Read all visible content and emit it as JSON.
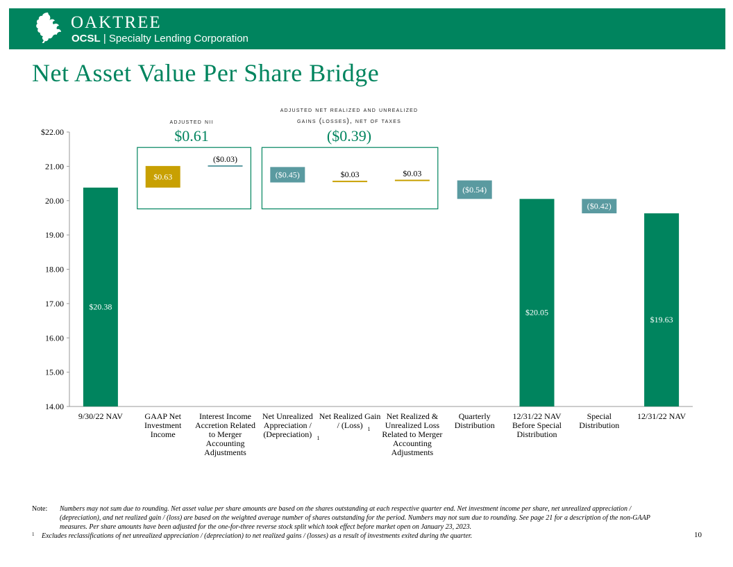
{
  "header": {
    "brand": "OAKTREE",
    "ticker": "OCSL",
    "separator": "|",
    "subtitle": "Specialty Lending Corporation",
    "banner_color": "#00845e"
  },
  "page_title": "Net Asset Value Per Share Bridge",
  "groups": [
    {
      "label": "adjusted nii",
      "value": "$0.61"
    },
    {
      "label_line1": "adjusted net realized and unrealized",
      "label_line2": "gains (losses), net of taxes",
      "value": "($0.39)"
    }
  ],
  "chart_data": {
    "type": "waterfall",
    "ylim": [
      14.0,
      22.0
    ],
    "yticks": [
      {
        "value": 22.0,
        "label": "$22.00"
      },
      {
        "value": 21.0,
        "label": "21.00"
      },
      {
        "value": 20.0,
        "label": "20.00"
      },
      {
        "value": 19.0,
        "label": "19.00"
      },
      {
        "value": 18.0,
        "label": "18.00"
      },
      {
        "value": 17.0,
        "label": "17.00"
      },
      {
        "value": 16.0,
        "label": "16.00"
      },
      {
        "value": 15.0,
        "label": "15.00"
      },
      {
        "value": 14.0,
        "label": "14.00"
      }
    ],
    "bars": [
      {
        "category": [
          "9/30/22 NAV"
        ],
        "kind": "total",
        "start": 14.0,
        "end": 20.38,
        "label": "$20.38",
        "color": "#00845e"
      },
      {
        "category": [
          "GAAP Net",
          "Investment",
          "Income"
        ],
        "kind": "box",
        "start": 20.38,
        "end": 21.01,
        "label": "$0.63",
        "color": "#c8a002"
      },
      {
        "category": [
          "Interest Income",
          "Accretion Related",
          "to Merger",
          "Accounting",
          "Adjustments"
        ],
        "kind": "line",
        "start": 21.01,
        "end": 20.98,
        "label": "($0.03)",
        "color": "#5a9aa0"
      },
      {
        "category": [
          "Net Unrealized",
          "Appreciation /",
          "(Depreciation)"
        ],
        "superscript": "1",
        "kind": "box",
        "start": 20.98,
        "end": 20.53,
        "label": "($0.45)",
        "color": "#5a9aa0"
      },
      {
        "category": [
          "Net Realized Gain",
          "/ (Loss)"
        ],
        "superscript": "1",
        "kind": "line",
        "start": 20.53,
        "end": 20.56,
        "label": "$0.03",
        "color": "#c8a002"
      },
      {
        "category": [
          "Net Realized &",
          "Unrealized Loss",
          "Related to Merger",
          "Accounting",
          "Adjustments"
        ],
        "kind": "line",
        "start": 20.56,
        "end": 20.59,
        "label": "$0.03",
        "color": "#c8a002"
      },
      {
        "category": [
          "Quarterly",
          "Distribution"
        ],
        "kind": "box",
        "start": 20.59,
        "end": 20.05,
        "label": "($0.54)",
        "color": "#5a9aa0"
      },
      {
        "category": [
          "12/31/22 NAV",
          "Before Special",
          "Distribution"
        ],
        "kind": "total",
        "start": 14.0,
        "end": 20.05,
        "label": "$20.05",
        "color": "#00845e"
      },
      {
        "category": [
          "Special",
          "Distribution"
        ],
        "kind": "box",
        "start": 20.05,
        "end": 19.63,
        "label": "($0.42)",
        "color": "#5a9aa0"
      },
      {
        "category": [
          "12/31/22 NAV"
        ],
        "kind": "total",
        "start": 14.0,
        "end": 19.63,
        "label": "$19.63",
        "color": "#00845e"
      }
    ],
    "group_boxes": [
      {
        "from_bar": 1,
        "to_bar": 2,
        "top_value": 21.55,
        "bottom_value": 19.76,
        "color": "#00845e"
      },
      {
        "from_bar": 3,
        "to_bar": 5,
        "top_value": 21.55,
        "bottom_value": 19.76,
        "color": "#00845e"
      }
    ],
    "axis_color": "#999999"
  },
  "footnote": {
    "note_label": "Note:",
    "note_text": "Numbers may not sum due to rounding. Net asset value per share amounts are based on the shares outstanding at each respective quarter end. Net investment income per share, net unrealized appreciation / (depreciation), and net realized gain / (loss) are based on the weighted average number of shares outstanding for the period. Numbers may not sum due to rounding. See page 21 for a description of the non-GAAP measures. Per share amounts have been adjusted for the one-for-three reverse stock split which took effect before market open on January 23, 2023.",
    "fn1_marker": "1",
    "fn1_text": "Excludes reclassifications of net unrealized appreciation / (depreciation) to net realized gains / (losses) as a result of investments exited during the quarter."
  },
  "page_number": "10"
}
